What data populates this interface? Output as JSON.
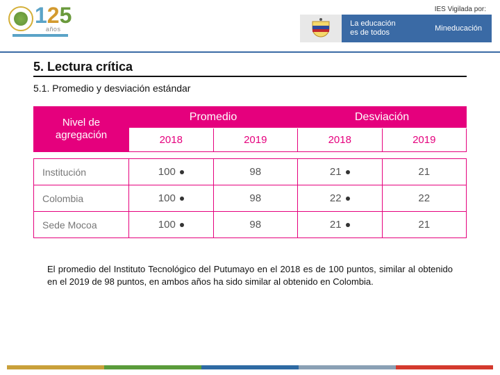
{
  "header": {
    "logo": {
      "number_1": "1",
      "number_2": "2",
      "number_5": "5",
      "anos": "años",
      "sub": ""
    },
    "ies_label": "IES Vigilada por:",
    "banner": {
      "line1": "La educación",
      "line2": "es de todos",
      "right": "Mineducación"
    }
  },
  "content": {
    "title": "5. Lectura crítica",
    "subtitle": "5.1. Promedio y desviación estándar",
    "paragraph": "El promedio del Instituto Tecnológico del Putumayo en el 2018 es de 100 puntos, similar al obtenido en el 2019 de 98 puntos, en ambos años ha sido similar al obtenido en Colombia."
  },
  "table": {
    "type": "table",
    "corner_line1": "Nivel de",
    "corner_line2": "agregación",
    "group_headers": [
      "Promedio",
      "Desviación"
    ],
    "year_headers": [
      "2018",
      "2019",
      "2018",
      "2019"
    ],
    "rows": [
      {
        "label": "Institución",
        "values": [
          "100",
          "98",
          "21",
          "21"
        ],
        "dots": [
          true,
          false,
          true,
          false
        ]
      },
      {
        "label": "Colombia",
        "values": [
          "100",
          "98",
          "22",
          "22"
        ],
        "dots": [
          true,
          false,
          true,
          false
        ]
      },
      {
        "label": "Sede Mocoa",
        "values": [
          "100",
          "98",
          "21",
          "21"
        ],
        "dots": [
          true,
          false,
          true,
          false
        ]
      }
    ],
    "colors": {
      "header_bg": "#e5007d",
      "header_fg": "#ffffff",
      "year_fg": "#e5007d",
      "border": "#e5007d",
      "label_fg": "#777777",
      "value_fg": "#555555",
      "dot": "#333333"
    },
    "col_widths_pct": [
      22,
      19.5,
      19.5,
      19.5,
      19.5
    ]
  },
  "footer_stripe_colors": [
    "#c9a03a",
    "#5a9c3b",
    "#2e6aa3",
    "#8aa0b5",
    "#d43a2e"
  ]
}
